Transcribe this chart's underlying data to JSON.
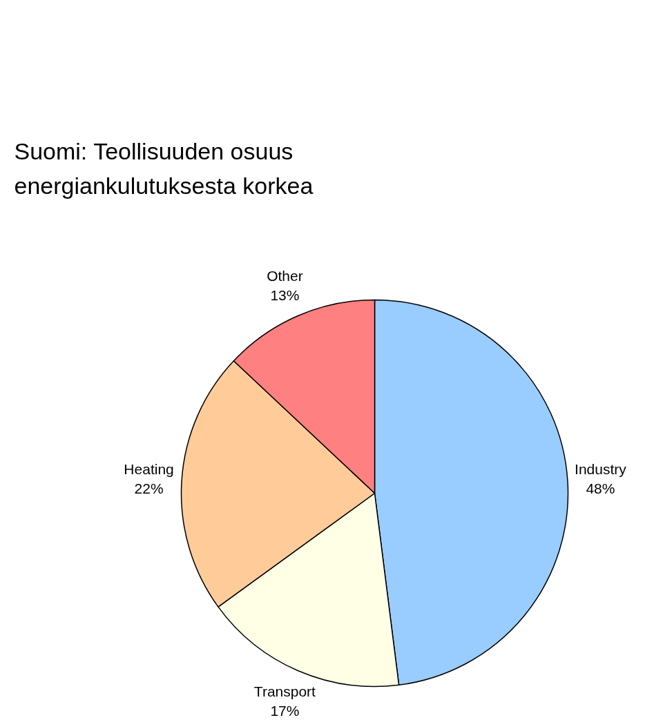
{
  "chart_data": {
    "type": "pie",
    "title": "Suomi: Teollisuuden osuus energiankulutuksesta korkea",
    "categories": [
      "Industry",
      "Transport",
      "Heating",
      "Other"
    ],
    "values": [
      48,
      17,
      22,
      13
    ],
    "value_labels": [
      "48%",
      "17%",
      "22%",
      "13%"
    ],
    "colors": [
      "#99ccff",
      "#ffffe6",
      "#ffcc99",
      "#ff8080"
    ]
  }
}
